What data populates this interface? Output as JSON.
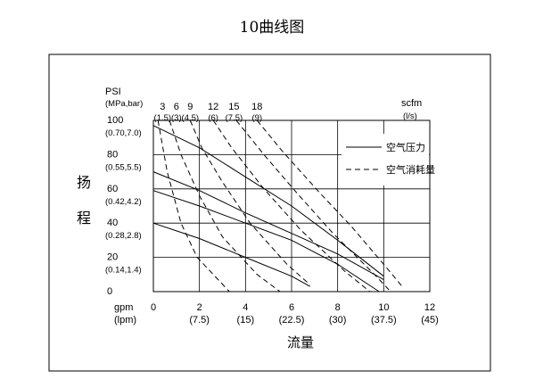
{
  "chart_data": {
    "type": "line",
    "title": "10曲线图",
    "ylabel": "扬程",
    "xlabel": "流量",
    "y_unit_label": "PSI",
    "y_unit_label2": "(MPa,bar)",
    "x_unit_label": "gpm",
    "x_unit_label2": "(lpm)",
    "top_unit_label": "scfm",
    "top_unit_label2": "(l/s)",
    "xlim": [
      0,
      12
    ],
    "ylim": [
      0,
      100
    ],
    "grid": true,
    "legend_position": "top-right",
    "x_ticks": [
      {
        "value": 0,
        "label": "0",
        "sub": ""
      },
      {
        "value": 2,
        "label": "2",
        "sub": "(7.5)"
      },
      {
        "value": 4,
        "label": "4",
        "sub": "(15)"
      },
      {
        "value": 6,
        "label": "6",
        "sub": "(22.5)"
      },
      {
        "value": 8,
        "label": "8",
        "sub": "(30)"
      },
      {
        "value": 10,
        "label": "10",
        "sub": "(37.5)"
      },
      {
        "value": 12,
        "label": "12",
        "sub": "(45)"
      }
    ],
    "y_ticks": [
      {
        "value": 100,
        "label": "100",
        "sub": "(0.70,7.0)"
      },
      {
        "value": 80,
        "label": "80",
        "sub": "(0.55,5.5)"
      },
      {
        "value": 60,
        "label": "60",
        "sub": "(0.42,4.2)"
      },
      {
        "value": 40,
        "label": "40",
        "sub": "(0.28,2.8)"
      },
      {
        "value": 20,
        "label": "20",
        "sub": "(0.14,1.4)"
      },
      {
        "value": 0,
        "label": "0",
        "sub": ""
      }
    ],
    "top_ticks": [
      {
        "value": 0.4,
        "label": "3",
        "sub": "(1.5)"
      },
      {
        "value": 1.0,
        "label": "6",
        "sub": "(3)"
      },
      {
        "value": 1.6,
        "label": "9",
        "sub": "(4.5)"
      },
      {
        "value": 2.6,
        "label": "12",
        "sub": "(6)"
      },
      {
        "value": 3.5,
        "label": "15",
        "sub": "(7.5)"
      },
      {
        "value": 4.5,
        "label": "18",
        "sub": "(9)"
      }
    ],
    "legend": [
      {
        "label": "空气压力",
        "style": "solid"
      },
      {
        "label": "空气消耗量",
        "style": "dashed"
      }
    ],
    "series": [
      {
        "style": "solid",
        "points": [
          [
            0,
            97
          ],
          [
            2,
            84
          ],
          [
            4,
            67
          ],
          [
            6,
            50
          ],
          [
            8,
            30
          ],
          [
            10,
            9
          ]
        ]
      },
      {
        "style": "solid",
        "points": [
          [
            0,
            70
          ],
          [
            2,
            59
          ],
          [
            4,
            46
          ],
          [
            6,
            34
          ],
          [
            8,
            22
          ],
          [
            10,
            7
          ]
        ]
      },
      {
        "style": "solid",
        "points": [
          [
            0,
            59
          ],
          [
            2,
            50
          ],
          [
            4,
            40
          ],
          [
            6,
            30
          ],
          [
            8,
            16
          ],
          [
            9.8,
            0
          ]
        ]
      },
      {
        "style": "solid",
        "points": [
          [
            0,
            40
          ],
          [
            2,
            31
          ],
          [
            4,
            20
          ],
          [
            6,
            9
          ],
          [
            6.8,
            3
          ]
        ]
      },
      {
        "style": "dashed",
        "points": [
          [
            0.2,
            100
          ],
          [
            0.6,
            70
          ],
          [
            1.2,
            40
          ],
          [
            1.9,
            20
          ],
          [
            3.3,
            0
          ]
        ]
      },
      {
        "style": "dashed",
        "points": [
          [
            0.7,
            100
          ],
          [
            1.2,
            80
          ],
          [
            2.0,
            56
          ],
          [
            3.0,
            32
          ],
          [
            4.5,
            10
          ],
          [
            5.5,
            0
          ]
        ]
      },
      {
        "style": "dashed",
        "points": [
          [
            1.6,
            100
          ],
          [
            2.1,
            84
          ],
          [
            3.0,
            64
          ],
          [
            4.2,
            40
          ],
          [
            5.8,
            16
          ],
          [
            6.8,
            4
          ]
        ]
      },
      {
        "style": "dashed",
        "points": [
          [
            2.6,
            100
          ],
          [
            3.4,
            84
          ],
          [
            4.8,
            60
          ],
          [
            6.4,
            36
          ],
          [
            8.3,
            12
          ],
          [
            9.4,
            0
          ]
        ]
      },
      {
        "style": "dashed",
        "points": [
          [
            3.6,
            100
          ],
          [
            4.8,
            80
          ],
          [
            6.2,
            58
          ],
          [
            7.8,
            34
          ],
          [
            9.6,
            10
          ],
          [
            10.3,
            0
          ]
        ]
      },
      {
        "style": "dashed",
        "points": [
          [
            4.5,
            100
          ],
          [
            5.6,
            82
          ],
          [
            7.2,
            58
          ],
          [
            8.6,
            38
          ],
          [
            10.0,
            16
          ],
          [
            10.8,
            3
          ]
        ]
      }
    ]
  }
}
